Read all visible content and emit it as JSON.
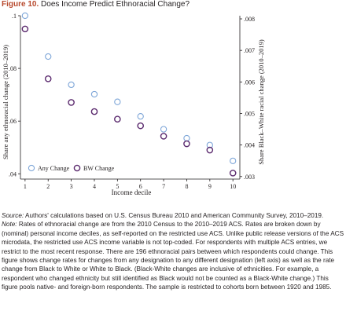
{
  "figure": {
    "label": "Figure 10.",
    "title": "Does Income Predict Ethnoracial Change?"
  },
  "chart_data": {
    "type": "scatter",
    "xlabel": "Income decile",
    "x": [
      1,
      2,
      3,
      4,
      5,
      6,
      7,
      8,
      9,
      10
    ],
    "x_ticks": [
      "1",
      "2",
      "3",
      "4",
      "5",
      "6",
      "7",
      "8",
      "9",
      "10"
    ],
    "left_axis": {
      "label": "Share any ethnoracial change (2010–2019)",
      "ylim": [
        0.038,
        0.1
      ],
      "ticks": [
        0.04,
        0.06,
        0.08,
        0.1
      ],
      "tick_labels": [
        ".04",
        ".06",
        ".08",
        ".1"
      ]
    },
    "right_axis": {
      "label": "Share Black–White racial change (2010–2019)",
      "ylim": [
        0.00292,
        0.0081
      ],
      "ticks": [
        0.003,
        0.004,
        0.005,
        0.006,
        0.007,
        0.008
      ],
      "tick_labels": [
        ".003",
        ".004",
        ".005",
        ".006",
        ".007",
        ".008"
      ]
    },
    "series": [
      {
        "name": "Any Change",
        "axis": "left",
        "color": "#7ea6d8",
        "values": [
          0.1,
          0.0845,
          0.0738,
          0.0702,
          0.0673,
          0.0618,
          0.0569,
          0.0535,
          0.0509,
          0.0449
        ]
      },
      {
        "name": "BW Change",
        "axis": "right",
        "color": "#5b2a6e",
        "values": [
          0.00768,
          0.0061,
          0.00535,
          0.00506,
          0.00482,
          0.00461,
          0.00428,
          0.00404,
          0.00384,
          0.00311
        ]
      }
    ],
    "legend": {
      "position": "bottom-left",
      "entries": [
        "Any Change",
        "BW Change"
      ]
    },
    "grid": false
  },
  "notes": {
    "source_label": "Source:",
    "source_text": " Authors' calculations based on U.S. Census Bureau 2010 and American Community Survey, 2010–2019.",
    "note_label": "Note:",
    "note_text": " Rates of ethnoracial change are from the 2010 Census to the 2010–2019 ACS. Rates are broken down by (nominal) personal income deciles, as self-reported on the restricted use ACS. Unlike public release versions of the ACS microdata, the restricted use ACS income variable is not top-coded. For respondents with multiple ACS entries, we restrict to the most recent response. There are 196 ethnoracial pairs between which respondents could change. This figure shows change rates for changes from any designation to any different designation (left axis) as well as the rate change from Black to White or White to Black. (Black-White changes are inclusive of ethnicities. For example, a respondent who changed ethnicity but still identified as Black would not be counted as a Black-White change.) This figure pools native- and foreign-born respondents. The sample is restricted to cohorts born between 1920 and 1985."
  }
}
